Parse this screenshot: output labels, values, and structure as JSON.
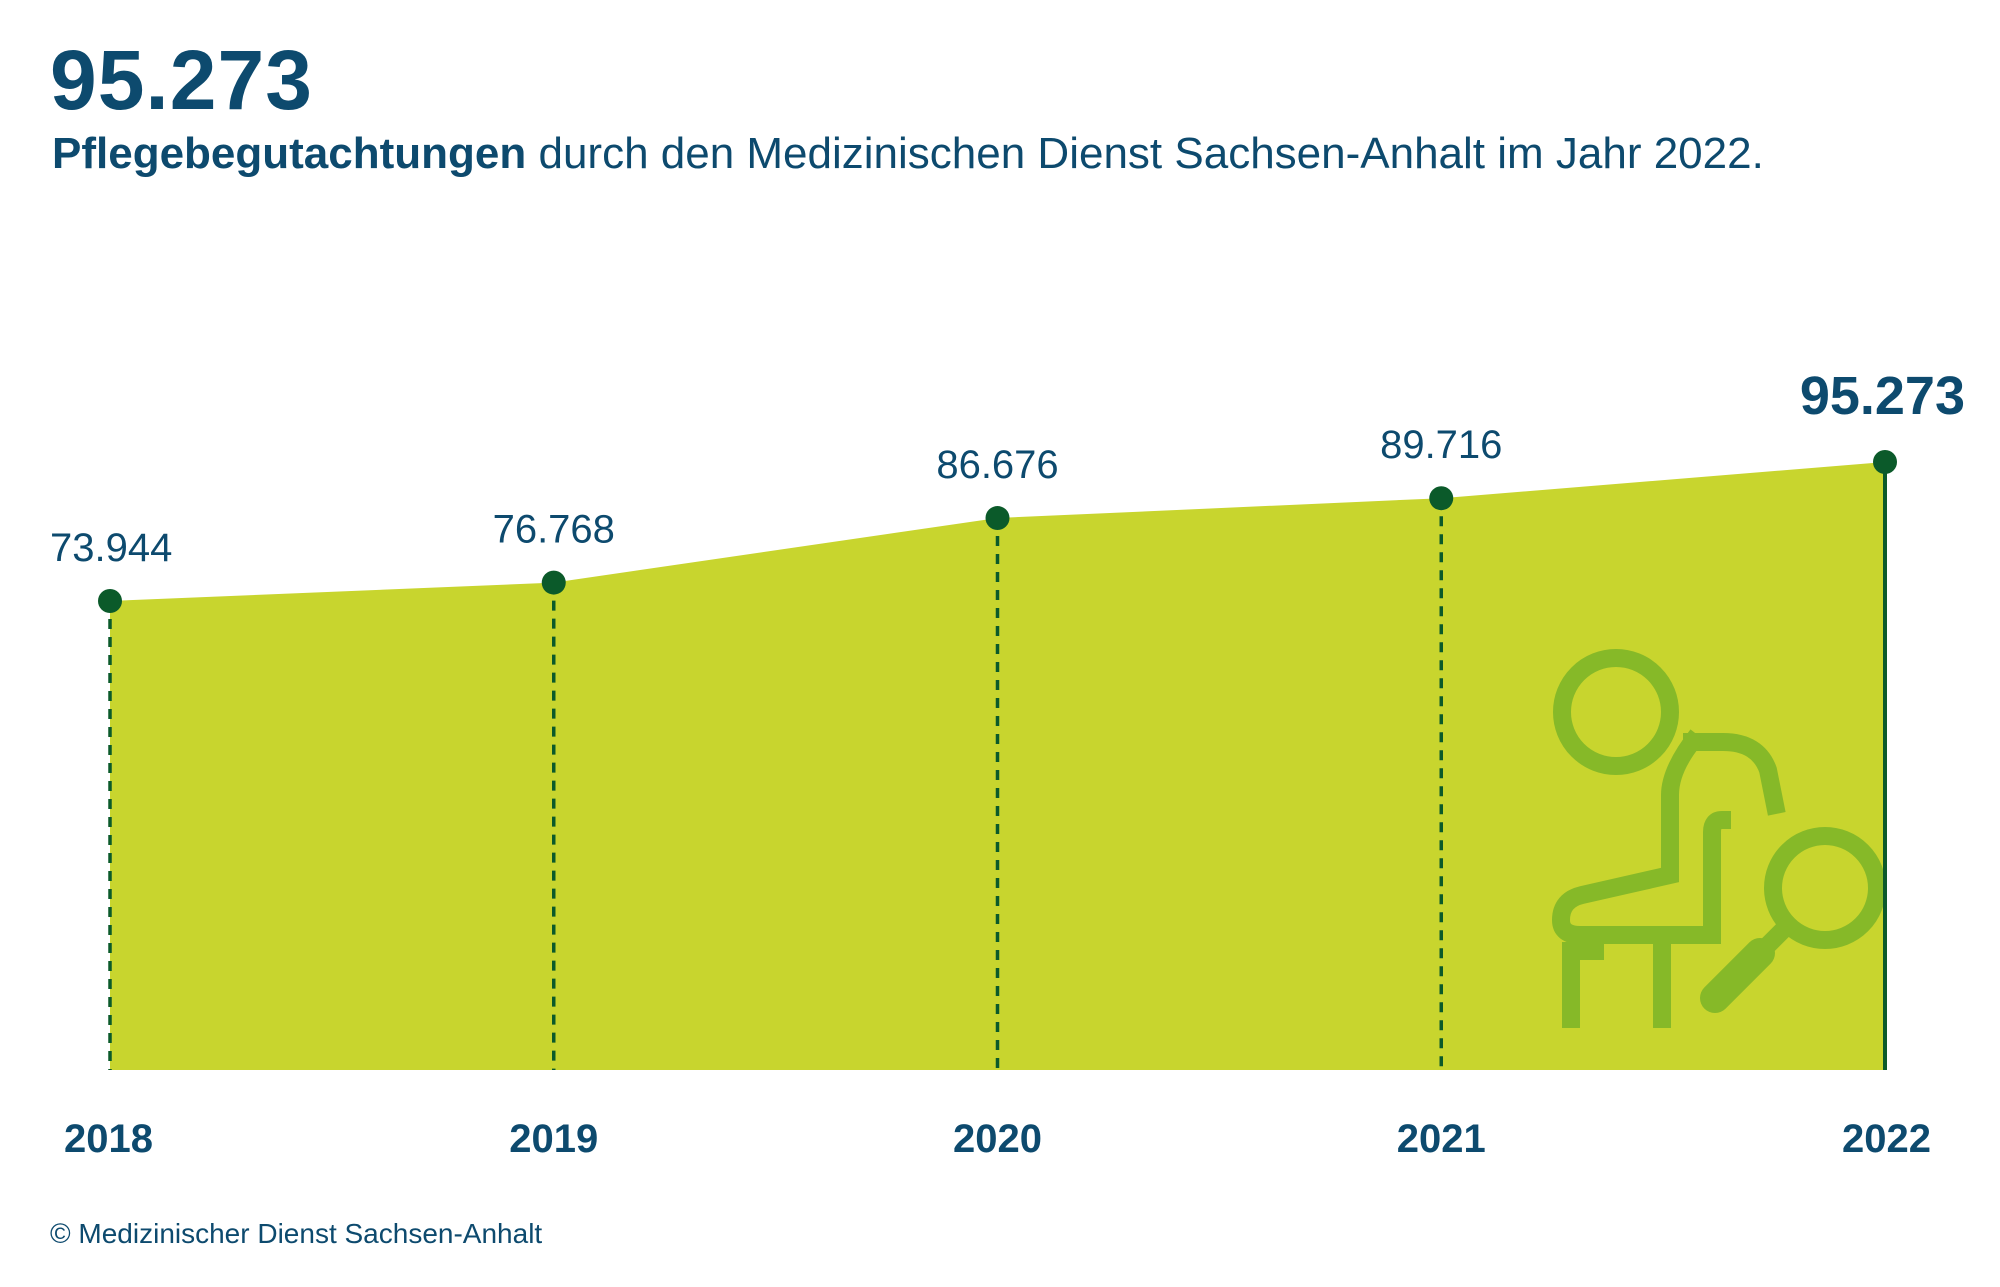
{
  "header": {
    "headline": "95.273",
    "subtitle_bold": "Pflegebegutachtungen",
    "subtitle_rest": " durch den Medizinischen Dienst Sachsen-Anhalt im Jahr 2022."
  },
  "footer": {
    "copyright": "© Medizinischer Dienst Sachsen-Anhalt"
  },
  "colors": {
    "text": "#0d4a6e",
    "area_fill": "#c8d52e",
    "marker": "#0b5a2a",
    "icon": "#86b928"
  },
  "icon": {
    "name": "care-assessment-person-magnifier-icon"
  },
  "chart_data": {
    "type": "area",
    "title": "",
    "xlabel": "",
    "ylabel": "",
    "categories": [
      "2018",
      "2019",
      "2020",
      "2021",
      "2022"
    ],
    "series": [
      {
        "values": [
          73944,
          76768,
          86676,
          89716,
          95273
        ],
        "labels": [
          "73.944",
          "76.768",
          "86.676",
          "89.716",
          "95.273"
        ]
      }
    ],
    "highlight_index": 4,
    "grid": false,
    "legend": "none"
  }
}
